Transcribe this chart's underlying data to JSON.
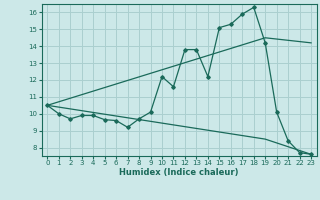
{
  "xlabel": "Humidex (Indice chaleur)",
  "ylabel": "",
  "bg_color": "#cce8e8",
  "grid_color": "#aacfcf",
  "line_color": "#1a6a5a",
  "xlim": [
    -0.5,
    23.5
  ],
  "ylim": [
    7.5,
    16.5
  ],
  "xticks": [
    0,
    1,
    2,
    3,
    4,
    5,
    6,
    7,
    8,
    9,
    10,
    11,
    12,
    13,
    14,
    15,
    16,
    17,
    18,
    19,
    20,
    21,
    22,
    23
  ],
  "yticks": [
    8,
    9,
    10,
    11,
    12,
    13,
    14,
    15,
    16
  ],
  "curve1_x": [
    0,
    1,
    2,
    3,
    4,
    5,
    6,
    7,
    8,
    9,
    10,
    11,
    12,
    13,
    14,
    15,
    16,
    17,
    18,
    19,
    20,
    21,
    22,
    23
  ],
  "curve1_y": [
    10.5,
    10.0,
    9.7,
    9.9,
    9.9,
    9.65,
    9.6,
    9.2,
    9.7,
    10.1,
    12.2,
    11.6,
    13.8,
    13.8,
    12.2,
    15.1,
    15.3,
    15.9,
    16.3,
    14.2,
    10.1,
    8.4,
    7.7,
    7.6
  ],
  "curve2_x": [
    0,
    19,
    23
  ],
  "curve2_y": [
    10.5,
    14.5,
    14.2
  ],
  "curve3_x": [
    0,
    19,
    23
  ],
  "curve3_y": [
    10.5,
    8.5,
    7.6
  ]
}
